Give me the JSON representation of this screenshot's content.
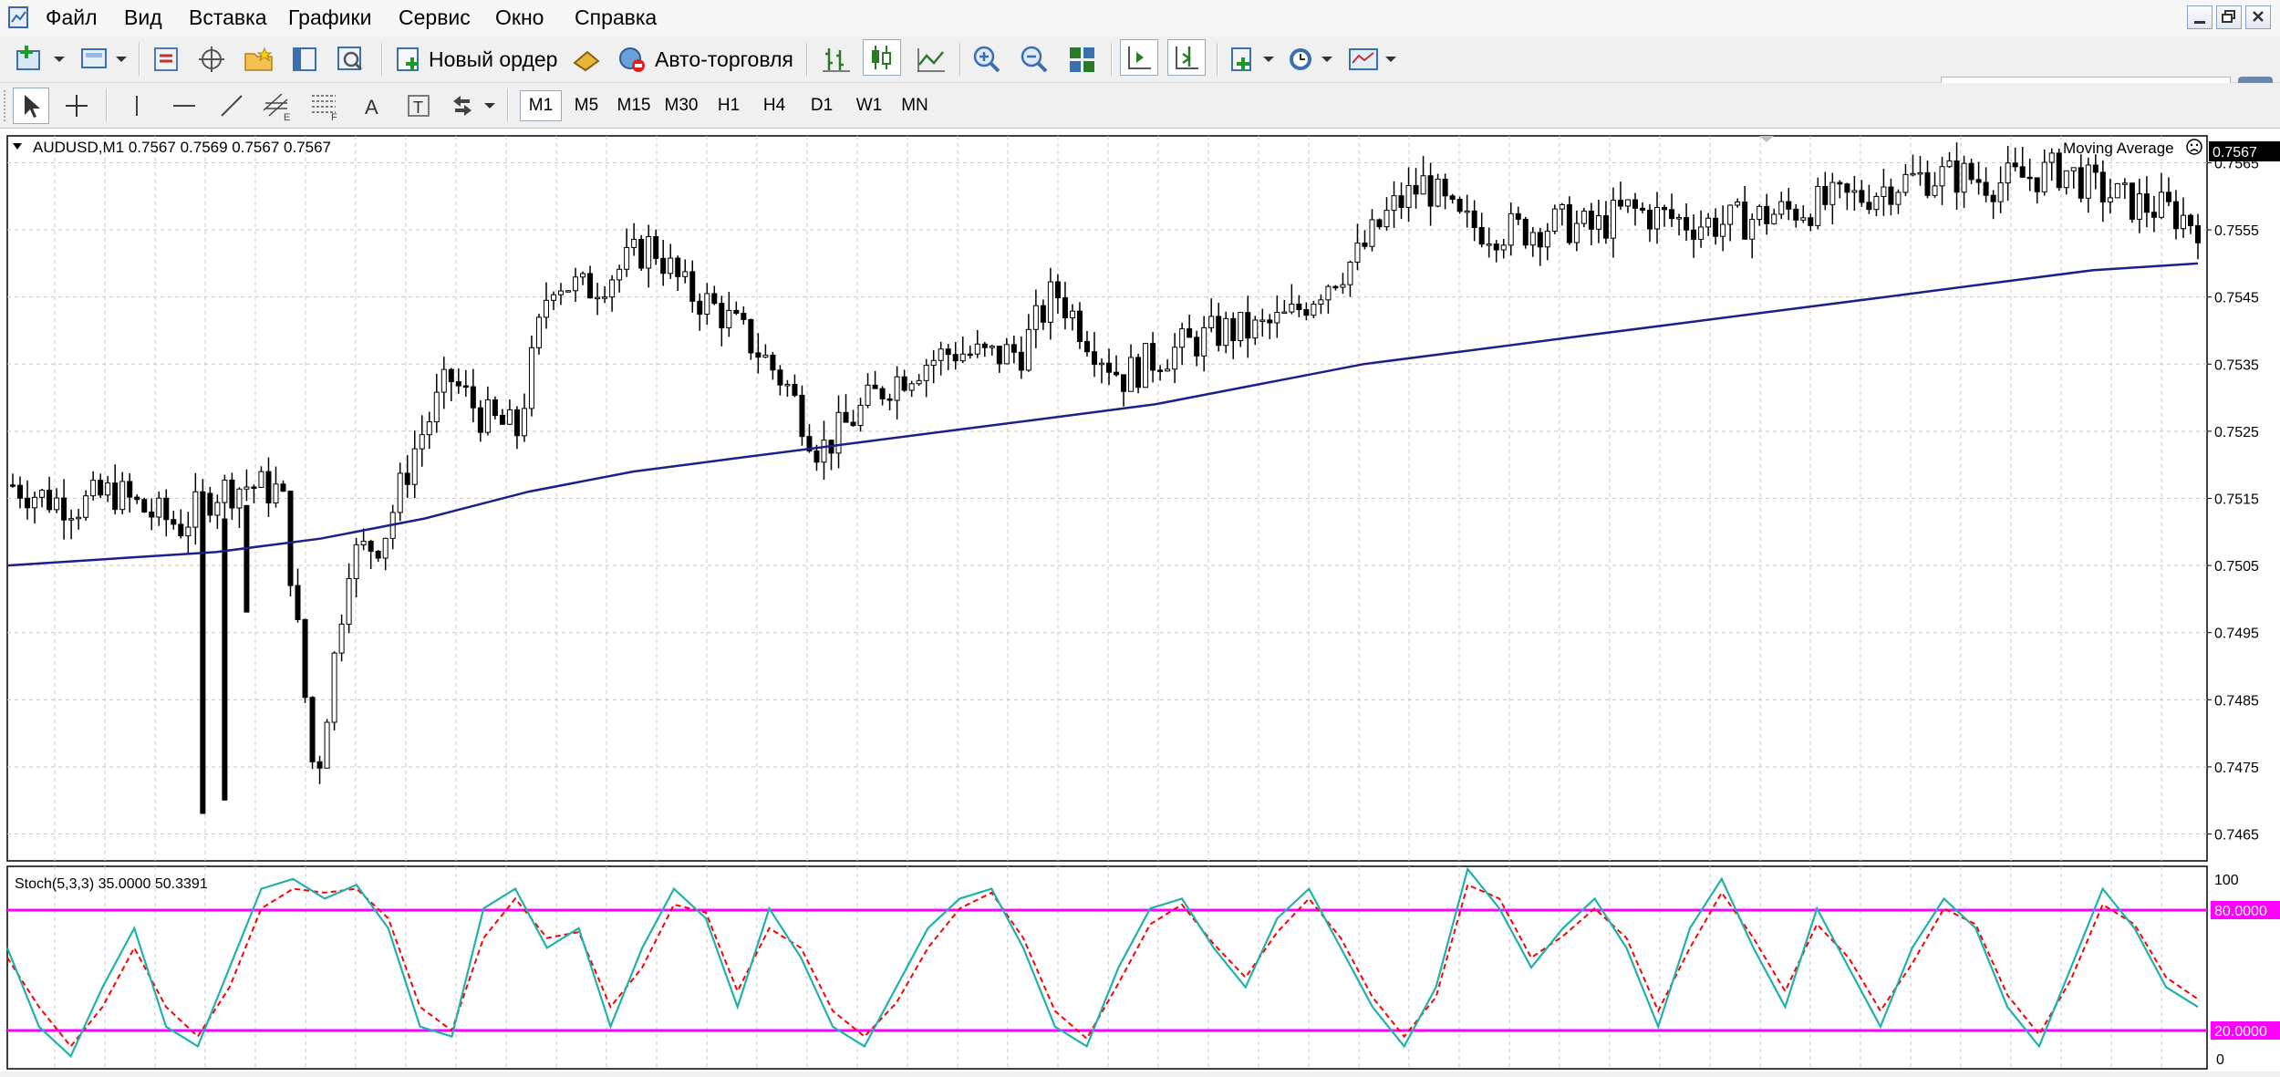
{
  "menu": {
    "items": [
      "Файл",
      "Вид",
      "Вставка",
      "Графики",
      "Сервис",
      "Окно",
      "Справка"
    ]
  },
  "toolbar": {
    "new_order_label": "Новый ордер",
    "auto_trading_label": "Авто-торговля"
  },
  "timeframes": [
    "M1",
    "M5",
    "M15",
    "M30",
    "H1",
    "H4",
    "D1",
    "W1",
    "MN"
  ],
  "active_timeframe": "M1",
  "search": {
    "placeholder": ""
  },
  "chart": {
    "header": "AUDUSD,M1  0.7567 0.7569 0.7567 0.7567",
    "indicator_label": "Moving Average",
    "current_price": "0.7567",
    "price_axis": [
      "0.7565",
      "0.7555",
      "0.7545",
      "0.7535",
      "0.7525",
      "0.7515",
      "0.7505",
      "0.7495",
      "0.7485",
      "0.7475",
      "0.7465"
    ],
    "stoch_header": "Stoch(5,3,3) 35.0000 50.3391",
    "stoch_axis_top": "100",
    "stoch_axis_bottom": "0",
    "stoch_level_high": "80.0000",
    "stoch_level_low": "20.0000",
    "colors": {
      "ma_line": "#1e1e8c",
      "stoch_main": "#20b2aa",
      "stoch_signal": "#ff0000",
      "levels": "#ff00ff",
      "grid": "#c8c8c8"
    }
  },
  "chart_data": [
    {
      "type": "candlestick",
      "title": "AUDUSD,M1",
      "ylim": [
        0.7461,
        0.7569
      ],
      "price_points": [
        0.7517,
        0.7515,
        0.7514,
        0.7516,
        0.7513,
        0.7511,
        0.7516,
        0.7517,
        0.7516,
        0.7472,
        0.7506,
        0.7509,
        0.7523,
        0.7533,
        0.7527,
        0.7525,
        0.7548,
        0.7546,
        0.7549,
        0.7553,
        0.7546,
        0.7543,
        0.7538,
        0.7532,
        0.7522,
        0.7527,
        0.7532,
        0.7535,
        0.7537,
        0.7536,
        0.7537,
        0.7546,
        0.7539,
        0.7533,
        0.7536,
        0.7538,
        0.754,
        0.754,
        0.7542,
        0.7547,
        0.7551,
        0.7558,
        0.7562,
        0.7556,
        0.7555,
        0.7555,
        0.7556,
        0.7555,
        0.7558,
        0.7557,
        0.7556,
        0.7556,
        0.7557,
        0.7558,
        0.7559,
        0.756,
        0.7562,
        0.7563,
        0.7563,
        0.7562,
        0.7563,
        0.7564,
        0.7561,
        0.7559,
        0.7558,
        0.7556
      ],
      "moving_average": [
        0.7505,
        0.7506,
        0.7507,
        0.7509,
        0.7512,
        0.7516,
        0.7519,
        0.7521,
        0.7523,
        0.7525,
        0.7527,
        0.7529,
        0.7532,
        0.7535,
        0.7537,
        0.7539,
        0.7541,
        0.7543,
        0.7545,
        0.7547,
        0.7549,
        0.755
      ]
    },
    {
      "type": "line",
      "title": "Stoch(5,3,3)",
      "ylim": [
        0,
        100
      ],
      "levels": [
        80,
        20
      ],
      "series": [
        {
          "values": [
            60,
            20,
            5,
            40,
            70,
            20,
            10,
            50,
            90,
            95,
            85,
            92,
            70,
            20,
            15,
            80,
            90,
            60,
            70,
            20,
            60,
            90,
            75,
            30,
            80,
            55,
            20,
            10,
            40,
            70,
            85,
            90,
            60,
            20,
            10,
            50,
            80,
            85,
            60,
            40,
            75,
            90,
            60,
            30,
            10,
            40,
            100,
            80,
            50,
            70,
            85,
            60,
            20,
            70,
            95,
            60,
            30,
            80,
            50,
            20,
            60,
            85,
            70,
            30,
            10,
            50,
            90,
            70,
            40,
            30
          ]
        },
        {
          "values": [
            55,
            30,
            10,
            30,
            60,
            30,
            15,
            40,
            80,
            90,
            88,
            90,
            75,
            30,
            18,
            65,
            85,
            65,
            68,
            30,
            50,
            82,
            78,
            38,
            70,
            60,
            28,
            15,
            32,
            60,
            80,
            88,
            65,
            28,
            14,
            42,
            72,
            82,
            62,
            45,
            68,
            85,
            65,
            35,
            15,
            35,
            92,
            85,
            55,
            66,
            80,
            65,
            28,
            60,
            88,
            65,
            38,
            72,
            55,
            28,
            52,
            80,
            72,
            36,
            16,
            44,
            82,
            72,
            45,
            34
          ]
        }
      ]
    }
  ]
}
